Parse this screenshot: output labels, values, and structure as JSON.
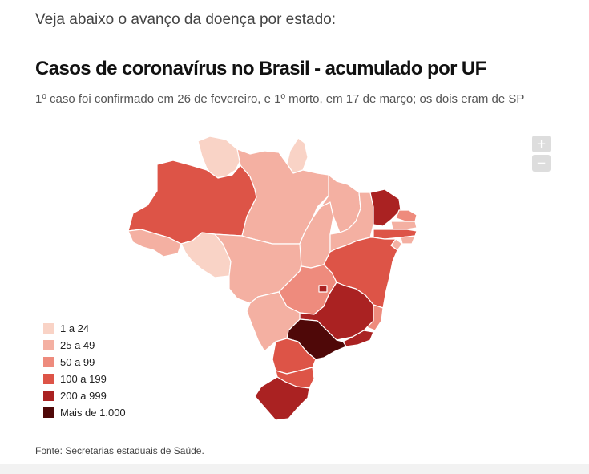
{
  "intro": "Veja abaixo o avanço da doença por estado:",
  "title": "Casos de coronavírus no Brasil - acumulado por UF",
  "subtitle": "1º caso foi confirmado em 26 de fevereiro, e 1º morto, em 17 de março; os dois eram de SP",
  "zoom": {
    "in_label": "+",
    "out_label": "−"
  },
  "legend": [
    {
      "label": "1 a 24",
      "color": "#f9d3c6"
    },
    {
      "label": "25 a 49",
      "color": "#f4b0a2"
    },
    {
      "label": "50 a 99",
      "color": "#ee8b7d"
    },
    {
      "label": "100 a 199",
      "color": "#dd5447"
    },
    {
      "label": "200 a 999",
      "color": "#aa2222"
    },
    {
      "label": "Mais de 1.000",
      "color": "#4f0808"
    }
  ],
  "source": "Fonte: Secretarias estaduais de Saúde.",
  "states": {
    "RR": {
      "bucket": "1 a 24"
    },
    "AP": {
      "bucket": "1 a 24"
    },
    "AC": {
      "bucket": "25 a 49"
    },
    "RO": {
      "bucket": "1 a 24"
    },
    "AM": {
      "bucket": "100 a 199"
    },
    "PA": {
      "bucket": "25 a 49"
    },
    "MT": {
      "bucket": "25 a 49"
    },
    "TO": {
      "bucket": "25 a 49"
    },
    "MA": {
      "bucket": "25 a 49"
    },
    "PI": {
      "bucket": "25 a 49"
    },
    "CE": {
      "bucket": "200 a 999"
    },
    "RN": {
      "bucket": "50 a 99"
    },
    "PB": {
      "bucket": "25 a 49"
    },
    "PE": {
      "bucket": "100 a 199"
    },
    "AL": {
      "bucket": "25 a 49"
    },
    "SE": {
      "bucket": "25 a 49"
    },
    "BA": {
      "bucket": "100 a 199"
    },
    "GO": {
      "bucket": "50 a 99"
    },
    "DF": {
      "bucket": "200 a 999"
    },
    "MG": {
      "bucket": "200 a 999"
    },
    "ES": {
      "bucket": "50 a 99"
    },
    "RJ": {
      "bucket": "200 a 999"
    },
    "SP": {
      "bucket": "Mais de 1.000"
    },
    "MS": {
      "bucket": "25 a 49"
    },
    "PR": {
      "bucket": "100 a 199"
    },
    "SC": {
      "bucket": "100 a 199"
    },
    "RS": {
      "bucket": "200 a 999"
    }
  }
}
